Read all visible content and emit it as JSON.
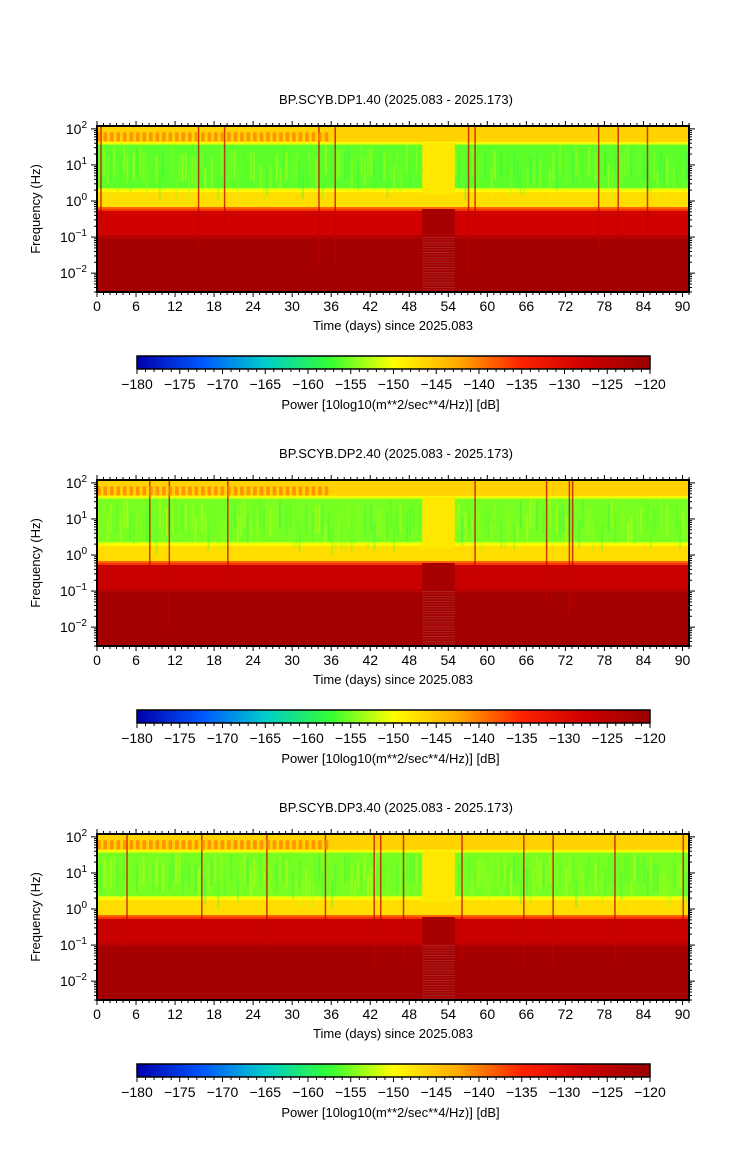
{
  "colors": {
    "colormap": [
      "#0000aa",
      "#0055ff",
      "#00cccc",
      "#33ff33",
      "#ffff00",
      "#ffaa00",
      "#ff2200",
      "#cc0000",
      "#990000"
    ],
    "background": "#ffffff"
  },
  "chart_data": [
    {
      "type": "heatmap",
      "title": "BP.SCYB.DP1.40 (2025.083 - 2025.173)",
      "xlabel": "Time (days) since 2025.083",
      "ylabel": "Frequency (Hz)",
      "x_ticks": [
        "0",
        "6",
        "12",
        "18",
        "24",
        "30",
        "36",
        "42",
        "48",
        "54",
        "60",
        "66",
        "72",
        "78",
        "84",
        "90"
      ],
      "y_ticks": [
        {
          "base": "10",
          "exp": "2",
          "value": 100
        },
        {
          "base": "10",
          "exp": "1",
          "value": 10
        },
        {
          "base": "10",
          "exp": "0",
          "value": 1
        },
        {
          "base": "10",
          "exp": "−1",
          "value": 0.1
        },
        {
          "base": "10",
          "exp": "−2",
          "value": 0.01
        }
      ],
      "xlim": [
        0,
        91
      ],
      "ylim": [
        0.003,
        120
      ],
      "y_scale": "log",
      "data_gap_days": [
        50,
        55
      ],
      "colorbar": {
        "label": "Power [10log10(m**2/sec**4/Hz)] [dB]",
        "range": [
          -180,
          -120
        ],
        "ticks": [
          "−180",
          "−175",
          "−170",
          "−165",
          "−160",
          "−155",
          "−150",
          "−145",
          "−140",
          "−135",
          "−130",
          "−125",
          "−120"
        ]
      },
      "bands": [
        {
          "freq_range_hz": [
            40,
            120
          ],
          "power_db": -146
        },
        {
          "freq_range_hz": [
            2,
            40
          ],
          "power_db": -156
        },
        {
          "freq_range_hz": [
            0.6,
            2
          ],
          "power_db": -147
        },
        {
          "freq_range_hz": [
            0.1,
            0.6
          ],
          "power_db": -128
        },
        {
          "freq_range_hz": [
            0.003,
            0.1
          ],
          "power_db": -122
        }
      ]
    },
    {
      "type": "heatmap",
      "title": "BP.SCYB.DP2.40 (2025.083 - 2025.173)",
      "xlabel": "Time (days) since 2025.083",
      "ylabel": "Frequency (Hz)",
      "x_ticks": [
        "0",
        "6",
        "12",
        "18",
        "24",
        "30",
        "36",
        "42",
        "48",
        "54",
        "60",
        "66",
        "72",
        "78",
        "84",
        "90"
      ],
      "y_ticks": [
        {
          "base": "10",
          "exp": "2",
          "value": 100
        },
        {
          "base": "10",
          "exp": "1",
          "value": 10
        },
        {
          "base": "10",
          "exp": "0",
          "value": 1
        },
        {
          "base": "10",
          "exp": "−1",
          "value": 0.1
        },
        {
          "base": "10",
          "exp": "−2",
          "value": 0.01
        }
      ],
      "xlim": [
        0,
        91
      ],
      "ylim": [
        0.003,
        120
      ],
      "y_scale": "log",
      "data_gap_days": [
        50,
        55
      ],
      "colorbar": {
        "label": "Power [10log10(m**2/sec**4/Hz)] [dB]",
        "range": [
          -180,
          -120
        ],
        "ticks": [
          "−180",
          "−175",
          "−170",
          "−165",
          "−160",
          "−155",
          "−150",
          "−145",
          "−140",
          "−135",
          "−130",
          "−125",
          "−120"
        ]
      },
      "bands": [
        {
          "freq_range_hz": [
            40,
            120
          ],
          "power_db": -146
        },
        {
          "freq_range_hz": [
            2,
            40
          ],
          "power_db": -155
        },
        {
          "freq_range_hz": [
            0.6,
            2
          ],
          "power_db": -147
        },
        {
          "freq_range_hz": [
            0.1,
            0.6
          ],
          "power_db": -127
        },
        {
          "freq_range_hz": [
            0.003,
            0.1
          ],
          "power_db": -122
        }
      ]
    },
    {
      "type": "heatmap",
      "title": "BP.SCYB.DP3.40 (2025.083 - 2025.173)",
      "xlabel": "Time (days) since 2025.083",
      "ylabel": "Frequency (Hz)",
      "x_ticks": [
        "0",
        "6",
        "12",
        "18",
        "24",
        "30",
        "36",
        "42",
        "48",
        "54",
        "60",
        "66",
        "72",
        "78",
        "84",
        "90"
      ],
      "y_ticks": [
        {
          "base": "10",
          "exp": "2",
          "value": 100
        },
        {
          "base": "10",
          "exp": "1",
          "value": 10
        },
        {
          "base": "10",
          "exp": "0",
          "value": 1
        },
        {
          "base": "10",
          "exp": "−1",
          "value": 0.1
        },
        {
          "base": "10",
          "exp": "−2",
          "value": 0.01
        }
      ],
      "xlim": [
        0,
        91
      ],
      "ylim": [
        0.003,
        120
      ],
      "y_scale": "log",
      "data_gap_days": [
        50,
        55
      ],
      "colorbar": {
        "label": "Power [10log10(m**2/sec**4/Hz)] [dB]",
        "range": [
          -180,
          -120
        ],
        "ticks": [
          "−180",
          "−175",
          "−170",
          "−165",
          "−160",
          "−155",
          "−150",
          "−145",
          "−140",
          "−135",
          "−130",
          "−125",
          "−120"
        ]
      },
      "bands": [
        {
          "freq_range_hz": [
            40,
            120
          ],
          "power_db": -146
        },
        {
          "freq_range_hz": [
            2,
            40
          ],
          "power_db": -155
        },
        {
          "freq_range_hz": [
            0.6,
            2
          ],
          "power_db": -147
        },
        {
          "freq_range_hz": [
            0.1,
            0.6
          ],
          "power_db": -127
        },
        {
          "freq_range_hz": [
            0.003,
            0.1
          ],
          "power_db": -122
        }
      ]
    }
  ]
}
